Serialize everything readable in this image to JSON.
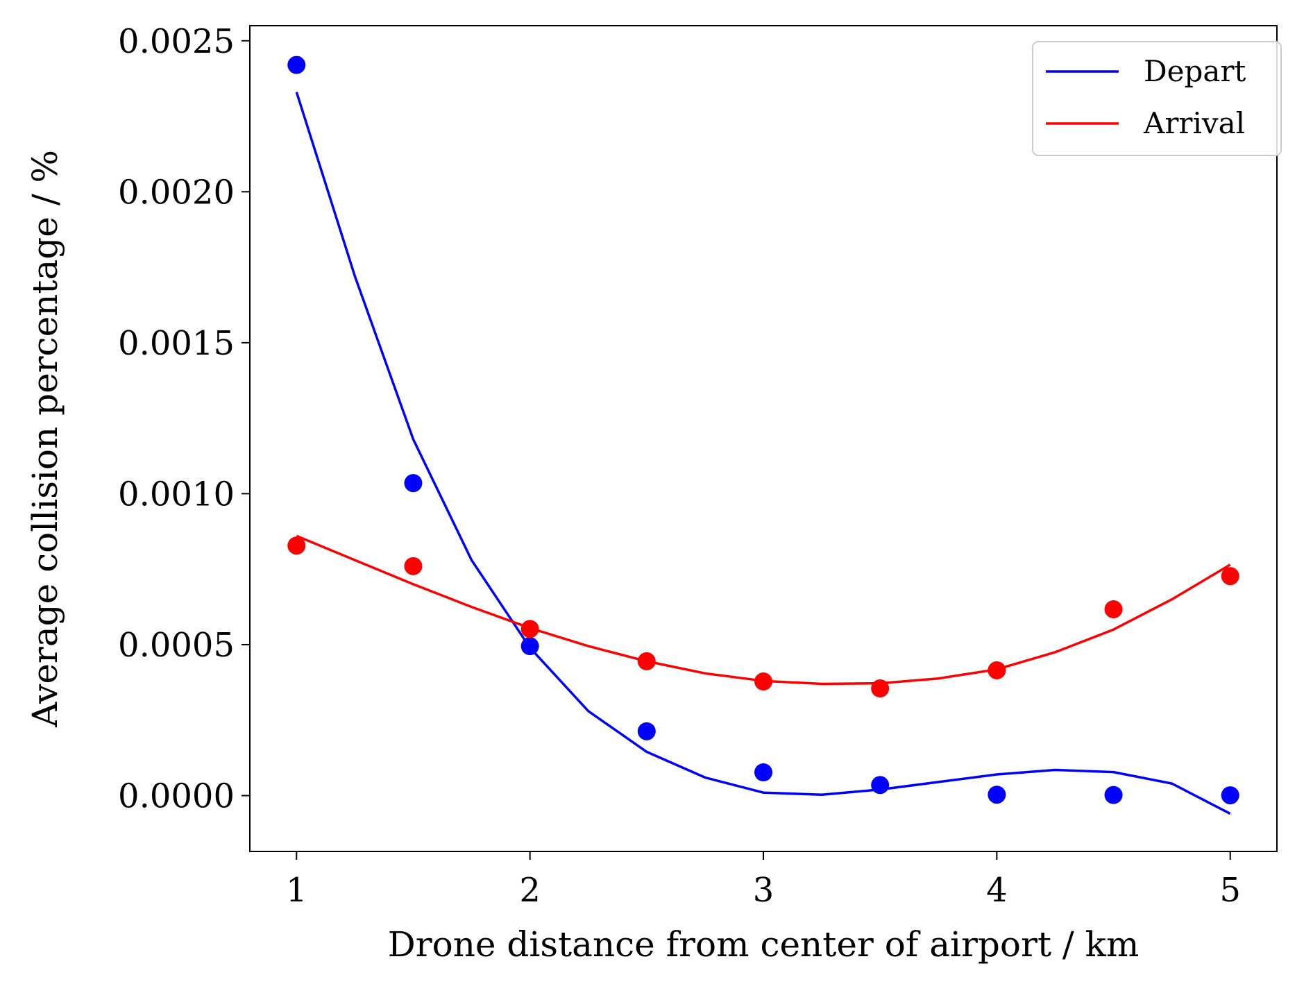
{
  "chart_data": {
    "type": "scatter",
    "title": "",
    "xlabel": "Drone distance from center of airport / km",
    "ylabel": "Average collision percentage / %",
    "xlim": [
      0.8,
      5.2
    ],
    "ylim": [
      -0.000185,
      0.00255
    ],
    "x_ticks": [
      1,
      2,
      3,
      4,
      5
    ],
    "x_tick_labels": [
      "1",
      "2",
      "3",
      "4",
      "5"
    ],
    "y_ticks": [
      0,
      0.0005,
      0.001,
      0.0015,
      0.002,
      0.0025
    ],
    "y_tick_labels": [
      "0.0000",
      "0.0005",
      "0.0010",
      "0.0015",
      "0.0020",
      "0.0025"
    ],
    "grid": false,
    "legend_position": "top-right",
    "series": [
      {
        "name": "Depart",
        "color": "#0000ff",
        "points": {
          "x": [
            1,
            1.5,
            2,
            2.5,
            3,
            3.5,
            4,
            4.5,
            5
          ],
          "y": [
            0.00242,
            0.001035,
            0.000495,
            0.000213,
            7.7e-05,
            3.5e-05,
            3e-06,
            2e-06,
            1e-06
          ]
        },
        "fit_curve": {
          "x": [
            1,
            1.25,
            1.5,
            1.75,
            2,
            2.25,
            2.5,
            2.75,
            3,
            3.25,
            3.5,
            3.75,
            4,
            4.25,
            4.5,
            4.75,
            5
          ],
          "y": [
            0.00233,
            0.00172,
            0.00118,
            0.00078,
            0.00049,
            0.00028,
            0.000145,
            6e-05,
            1e-05,
            3e-06,
            2e-05,
            4.5e-05,
            7e-05,
            8.5e-05,
            7.8e-05,
            4e-05,
            -6e-05
          ]
        }
      },
      {
        "name": "Arrival",
        "color": "#ff0000",
        "points": {
          "x": [
            1,
            1.5,
            2,
            2.5,
            3,
            3.5,
            4,
            4.5,
            5
          ],
          "y": [
            0.000828,
            0.00076,
            0.000552,
            0.000445,
            0.000378,
            0.000355,
            0.000415,
            0.000617,
            0.000727
          ]
        },
        "fit_curve": {
          "x": [
            1,
            1.25,
            1.5,
            1.75,
            2,
            2.25,
            2.5,
            2.75,
            3,
            3.25,
            3.5,
            3.75,
            4,
            4.25,
            4.5,
            4.75,
            5
          ],
          "y": [
            0.00086,
            0.00078,
            0.0007,
            0.000625,
            0.000555,
            0.000495,
            0.000445,
            0.000405,
            0.00038,
            0.00037,
            0.000372,
            0.000388,
            0.000418,
            0.000475,
            0.00055,
            0.00065,
            0.000765
          ]
        }
      }
    ]
  }
}
